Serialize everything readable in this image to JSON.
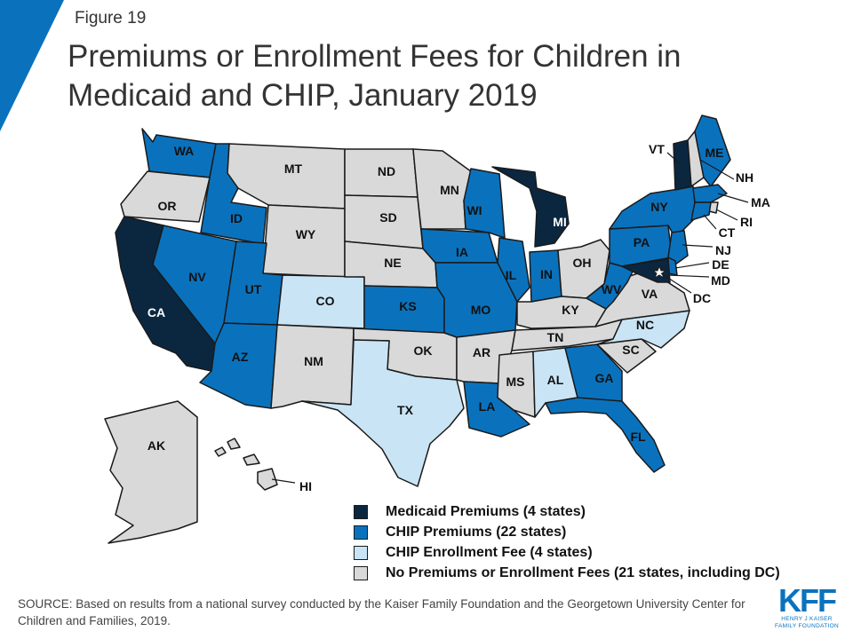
{
  "figure_label": "Figure 19",
  "title": "Premiums or Enrollment Fees for Children in Medicaid and CHIP, January 2019",
  "colors": {
    "medicaid_premiums": "#0b2740",
    "chip_premiums": "#0a72bd",
    "chip_enrollment_fee": "#c9e4f5",
    "none": "#d9d9d9",
    "accent": "#0a72bd"
  },
  "legend": [
    {
      "key": "medicaid_premiums",
      "label": "Medicaid Premiums (4 states)"
    },
    {
      "key": "chip_premiums",
      "label": "CHIP Premiums (22 states)"
    },
    {
      "key": "chip_enrollment_fee",
      "label": "CHIP Enrollment Fee (4 states)"
    },
    {
      "key": "none",
      "label": "No Premiums or Enrollment Fees (21 states, including DC)"
    }
  ],
  "states": [
    {
      "abbr": "WA",
      "category": "chip_premiums"
    },
    {
      "abbr": "OR",
      "category": "none"
    },
    {
      "abbr": "CA",
      "category": "medicaid_premiums"
    },
    {
      "abbr": "NV",
      "category": "chip_premiums"
    },
    {
      "abbr": "ID",
      "category": "chip_premiums"
    },
    {
      "abbr": "MT",
      "category": "none"
    },
    {
      "abbr": "WY",
      "category": "none"
    },
    {
      "abbr": "UT",
      "category": "chip_premiums"
    },
    {
      "abbr": "AZ",
      "category": "chip_premiums"
    },
    {
      "abbr": "CO",
      "category": "chip_enrollment_fee"
    },
    {
      "abbr": "NM",
      "category": "none"
    },
    {
      "abbr": "ND",
      "category": "none"
    },
    {
      "abbr": "SD",
      "category": "none"
    },
    {
      "abbr": "NE",
      "category": "none"
    },
    {
      "abbr": "KS",
      "category": "chip_premiums"
    },
    {
      "abbr": "OK",
      "category": "none"
    },
    {
      "abbr": "TX",
      "category": "chip_enrollment_fee"
    },
    {
      "abbr": "MN",
      "category": "none"
    },
    {
      "abbr": "IA",
      "category": "chip_premiums"
    },
    {
      "abbr": "MO",
      "category": "chip_premiums"
    },
    {
      "abbr": "AR",
      "category": "none"
    },
    {
      "abbr": "LA",
      "category": "chip_premiums"
    },
    {
      "abbr": "WI",
      "category": "chip_premiums"
    },
    {
      "abbr": "IL",
      "category": "chip_premiums"
    },
    {
      "abbr": "MI",
      "category": "medicaid_premiums"
    },
    {
      "abbr": "IN",
      "category": "chip_premiums"
    },
    {
      "abbr": "OH",
      "category": "none"
    },
    {
      "abbr": "KY",
      "category": "none"
    },
    {
      "abbr": "TN",
      "category": "none"
    },
    {
      "abbr": "MS",
      "category": "none"
    },
    {
      "abbr": "AL",
      "category": "chip_enrollment_fee"
    },
    {
      "abbr": "GA",
      "category": "chip_premiums"
    },
    {
      "abbr": "FL",
      "category": "chip_premiums"
    },
    {
      "abbr": "SC",
      "category": "none"
    },
    {
      "abbr": "NC",
      "category": "chip_enrollment_fee"
    },
    {
      "abbr": "VA",
      "category": "none"
    },
    {
      "abbr": "WV",
      "category": "chip_premiums"
    },
    {
      "abbr": "PA",
      "category": "chip_premiums"
    },
    {
      "abbr": "NY",
      "category": "chip_premiums"
    },
    {
      "abbr": "VT",
      "category": "medicaid_premiums"
    },
    {
      "abbr": "NH",
      "category": "none"
    },
    {
      "abbr": "ME",
      "category": "chip_premiums"
    },
    {
      "abbr": "MA",
      "category": "chip_premiums"
    },
    {
      "abbr": "RI",
      "category": "none"
    },
    {
      "abbr": "CT",
      "category": "chip_premiums"
    },
    {
      "abbr": "NJ",
      "category": "chip_premiums"
    },
    {
      "abbr": "DE",
      "category": "chip_premiums"
    },
    {
      "abbr": "MD",
      "category": "medicaid_premiums"
    },
    {
      "abbr": "DC",
      "category": "none"
    },
    {
      "abbr": "AK",
      "category": "none"
    },
    {
      "abbr": "HI",
      "category": "none"
    }
  ],
  "source": "SOURCE: Based on results from a national survey conducted by the Kaiser Family Foundation and the Georgetown University Center for Children and Families, 2019.",
  "logo": {
    "mark": "KFF",
    "sub_line_1": "HENRY J KAISER",
    "sub_line_2": "FAMILY FOUNDATION"
  }
}
